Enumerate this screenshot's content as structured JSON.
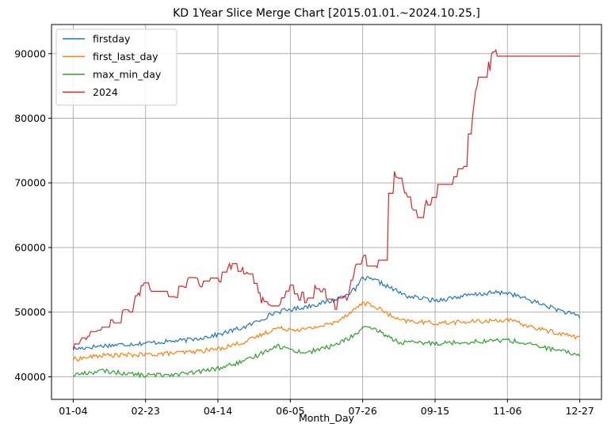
{
  "chart_data": {
    "type": "line",
    "title": "KD 1Year Slice Merge Chart [2015.01.01.~2024.10.25.]",
    "xlabel": "Month_Day",
    "ylabel": "",
    "x_ticks": [
      "01-04",
      "02-23",
      "04-14",
      "06-05",
      "07-26",
      "09-15",
      "11-06",
      "12-27"
    ],
    "x_tick_index": [
      0,
      50,
      100,
      150,
      200,
      250,
      300,
      350
    ],
    "x_range": [
      -15,
      365
    ],
    "y_ticks": [
      40000,
      50000,
      60000,
      70000,
      80000,
      90000
    ],
    "ylim": [
      36500,
      94500
    ],
    "grid": true,
    "legend_position": "top-left",
    "series": [
      {
        "name": "firstday",
        "color": "#1f77b4",
        "keypoints": [
          [
            0,
            44300
          ],
          [
            20,
            44800
          ],
          [
            50,
            45200
          ],
          [
            80,
            45700
          ],
          [
            100,
            46500
          ],
          [
            120,
            47800
          ],
          [
            140,
            50000
          ],
          [
            160,
            50800
          ],
          [
            180,
            51800
          ],
          [
            195,
            53500
          ],
          [
            200,
            55300
          ],
          [
            210,
            54800
          ],
          [
            230,
            52500
          ],
          [
            250,
            51800
          ],
          [
            270,
            52500
          ],
          [
            290,
            53000
          ],
          [
            300,
            53000
          ],
          [
            320,
            51500
          ],
          [
            340,
            50000
          ],
          [
            350,
            49300
          ]
        ]
      },
      {
        "name": "first_last_day",
        "color": "#ff7f0e",
        "keypoints": [
          [
            0,
            42700
          ],
          [
            20,
            43300
          ],
          [
            50,
            43400
          ],
          [
            80,
            43800
          ],
          [
            100,
            44300
          ],
          [
            120,
            45500
          ],
          [
            140,
            47500
          ],
          [
            160,
            47300
          ],
          [
            180,
            48300
          ],
          [
            195,
            50500
          ],
          [
            200,
            51500
          ],
          [
            210,
            50700
          ],
          [
            225,
            48700
          ],
          [
            250,
            48300
          ],
          [
            275,
            48500
          ],
          [
            300,
            48800
          ],
          [
            320,
            47500
          ],
          [
            340,
            46500
          ],
          [
            350,
            46100
          ]
        ]
      },
      {
        "name": "max_min_day",
        "color": "#2ca02c",
        "keypoints": [
          [
            0,
            40300
          ],
          [
            20,
            40900
          ],
          [
            50,
            40200
          ],
          [
            80,
            40500
          ],
          [
            100,
            41300
          ],
          [
            120,
            42500
          ],
          [
            140,
            44800
          ],
          [
            160,
            43700
          ],
          [
            180,
            44800
          ],
          [
            195,
            46500
          ],
          [
            200,
            47600
          ],
          [
            210,
            47200
          ],
          [
            225,
            45300
          ],
          [
            250,
            45200
          ],
          [
            275,
            45400
          ],
          [
            300,
            45700
          ],
          [
            320,
            44800
          ],
          [
            340,
            43800
          ],
          [
            350,
            43400
          ]
        ]
      },
      {
        "name": "2024",
        "color": "#d62728",
        "keypoints": [
          [
            0,
            44200
          ],
          [
            10,
            46000
          ],
          [
            20,
            47500
          ],
          [
            30,
            48600
          ],
          [
            40,
            51000
          ],
          [
            50,
            54500
          ],
          [
            60,
            53000
          ],
          [
            70,
            52500
          ],
          [
            80,
            55500
          ],
          [
            90,
            54000
          ],
          [
            100,
            55000
          ],
          [
            110,
            57500
          ],
          [
            120,
            56000
          ],
          [
            130,
            51500
          ],
          [
            140,
            51300
          ],
          [
            150,
            53500
          ],
          [
            160,
            52000
          ],
          [
            170,
            54000
          ],
          [
            180,
            51000
          ],
          [
            190,
            52500
          ],
          [
            195,
            57000
          ],
          [
            200,
            58500
          ],
          [
            210,
            56500
          ],
          [
            215,
            63500
          ],
          [
            220,
            72000
          ],
          [
            225,
            70000
          ],
          [
            235,
            66500
          ],
          [
            240,
            64500
          ],
          [
            250,
            69500
          ],
          [
            260,
            70500
          ],
          [
            270,
            72500
          ],
          [
            275,
            79800
          ],
          [
            280,
            86000
          ],
          [
            285,
            90500
          ],
          [
            288,
            88000
          ],
          [
            291,
            92300
          ],
          [
            293,
            89600
          ],
          [
            300,
            89600
          ],
          [
            320,
            89600
          ],
          [
            350,
            89600
          ]
        ]
      }
    ]
  }
}
